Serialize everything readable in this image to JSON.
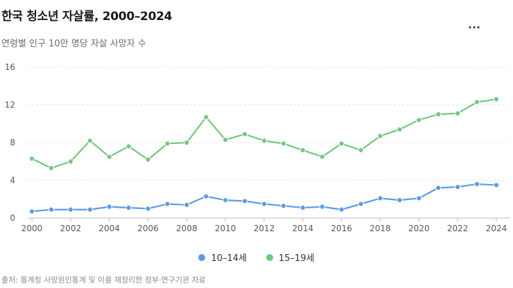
{
  "title": "한국 청소년 자살률, 2000–2024",
  "subtitle": "연령별 인구 10만 명당 자살 사망자 수",
  "menu_label": "···",
  "source": "출처: 통계청 사망원인통계 및 이를 재정리한 정부·연구기관 자료",
  "chart_data": {
    "type": "line",
    "title": "한국 청소년 자살률, 2000–2024",
    "subtitle": "연령별 인구 10만 명당 자살 사망자 수",
    "xlabel": "",
    "ylabel": "",
    "x": [
      2000,
      2001,
      2002,
      2003,
      2004,
      2005,
      2006,
      2007,
      2008,
      2009,
      2010,
      2011,
      2012,
      2013,
      2014,
      2015,
      2016,
      2017,
      2018,
      2019,
      2020,
      2021,
      2022,
      2023,
      2024
    ],
    "x_ticks": [
      "2000",
      "2002",
      "2004",
      "2006",
      "2008",
      "2010",
      "2012",
      "2014",
      "2016",
      "2018",
      "2020",
      "2022",
      "2024"
    ],
    "ylim": [
      0,
      16
    ],
    "y_ticks": [
      "0",
      "4",
      "8",
      "12",
      "16"
    ],
    "grid": true,
    "legend_position": "bottom",
    "series": [
      {
        "name": "10–14세",
        "color": "#5b9be6",
        "values": [
          0.7,
          0.9,
          0.9,
          0.9,
          1.2,
          1.1,
          1.0,
          1.5,
          1.4,
          2.3,
          1.9,
          1.8,
          1.5,
          1.3,
          1.1,
          1.2,
          0.9,
          1.5,
          2.1,
          1.9,
          2.1,
          3.2,
          3.3,
          3.6,
          3.5
        ]
      },
      {
        "name": "15–19세",
        "color": "#72c77f",
        "values": [
          6.3,
          5.3,
          6.0,
          8.2,
          6.5,
          7.6,
          6.2,
          7.9,
          8.0,
          10.7,
          8.3,
          8.9,
          8.2,
          7.9,
          7.2,
          6.5,
          7.9,
          7.2,
          8.7,
          9.4,
          10.4,
          11.0,
          11.1,
          12.3,
          12.6
        ]
      }
    ]
  }
}
